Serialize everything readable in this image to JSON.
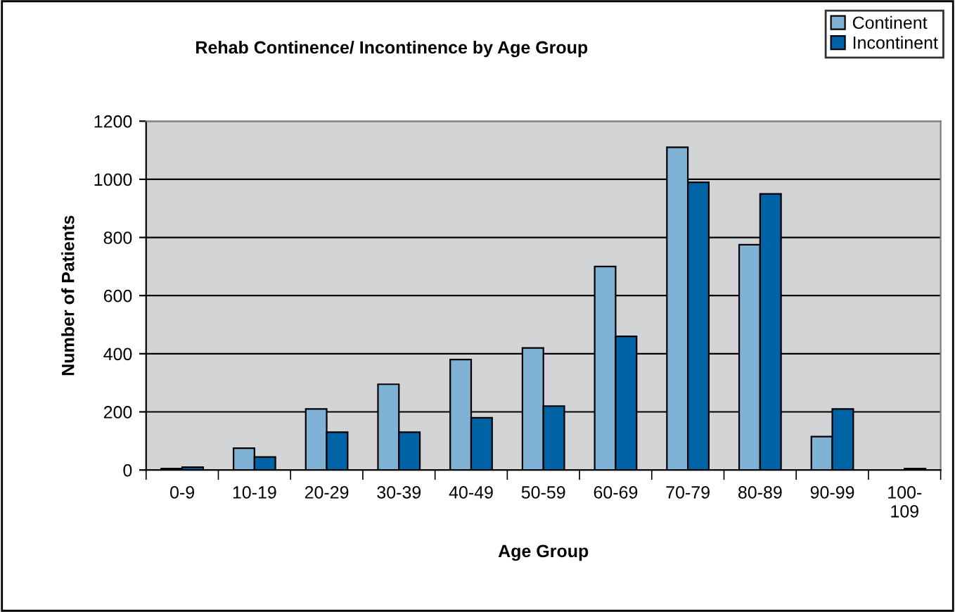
{
  "chart_data": {
    "type": "bar",
    "title": "Rehab Continence/ Incontinence by Age Group",
    "xlabel": "Age Group",
    "ylabel": "Number of Patients",
    "categories": [
      "0-9",
      "10-19",
      "20-29",
      "30-39",
      "40-49",
      "50-59",
      "60-69",
      "70-79",
      "80-89",
      "90-99",
      "100-109"
    ],
    "series": [
      {
        "name": "Continent",
        "color": "#7fb2d4",
        "values": [
          5,
          75,
          210,
          295,
          380,
          420,
          700,
          1110,
          775,
          115,
          null
        ]
      },
      {
        "name": "Incontinent",
        "color": "#0063a5",
        "values": [
          10,
          45,
          130,
          130,
          180,
          220,
          460,
          990,
          950,
          210,
          5
        ]
      }
    ],
    "ylim": [
      0,
      1200
    ],
    "yticks": [
      0,
      200,
      400,
      600,
      800,
      1000,
      1200
    ],
    "grid": "y",
    "legend": "top right"
  }
}
